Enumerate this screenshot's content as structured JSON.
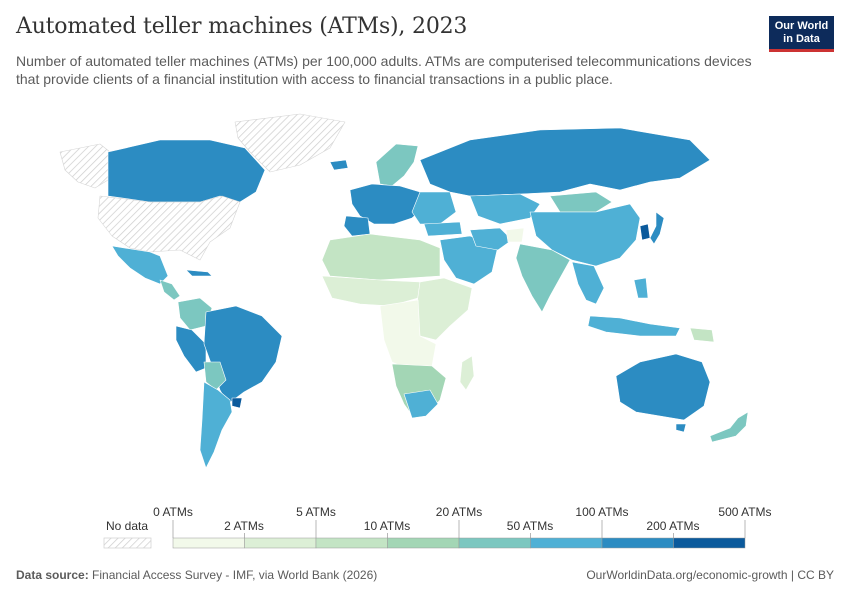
{
  "header": {
    "title": "Automated teller machines (ATMs), 2023",
    "subtitle": "Number of automated teller machines (ATMs) per 100,000 adults. ATMs are computerised telecommunications devices that provide clients of a financial institution with access to financial transactions in a public place."
  },
  "logo": {
    "line1": "Our World",
    "line2": "in Data"
  },
  "legend": {
    "no_data_label": "No data",
    "upper_ticks": [
      "0 ATMs",
      "5 ATMs",
      "20 ATMs",
      "100 ATMs",
      "500 ATMs"
    ],
    "lower_ticks": [
      "2 ATMs",
      "10 ATMs",
      "50 ATMs",
      "200 ATMs"
    ],
    "bins": [
      {
        "from": 0,
        "to": 2,
        "color": "#f2f9ea"
      },
      {
        "from": 2,
        "to": 5,
        "color": "#dcefd6"
      },
      {
        "from": 5,
        "to": 10,
        "color": "#c3e4c4"
      },
      {
        "from": 10,
        "to": 20,
        "color": "#a3d6b5"
      },
      {
        "from": 20,
        "to": 50,
        "color": "#7cc7c0"
      },
      {
        "from": 50,
        "to": 100,
        "color": "#4fb0d5"
      },
      {
        "from": 100,
        "to": 200,
        "color": "#2c8cc2"
      },
      {
        "from": 200,
        "to": 500,
        "color": "#0b5a9c"
      }
    ]
  },
  "footer": {
    "source_label": "Data source:",
    "source_text": "Financial Access Survey - IMF, via World Bank (2026)",
    "right_text": "OurWorldinData.org/economic-growth | CC BY"
  }
}
